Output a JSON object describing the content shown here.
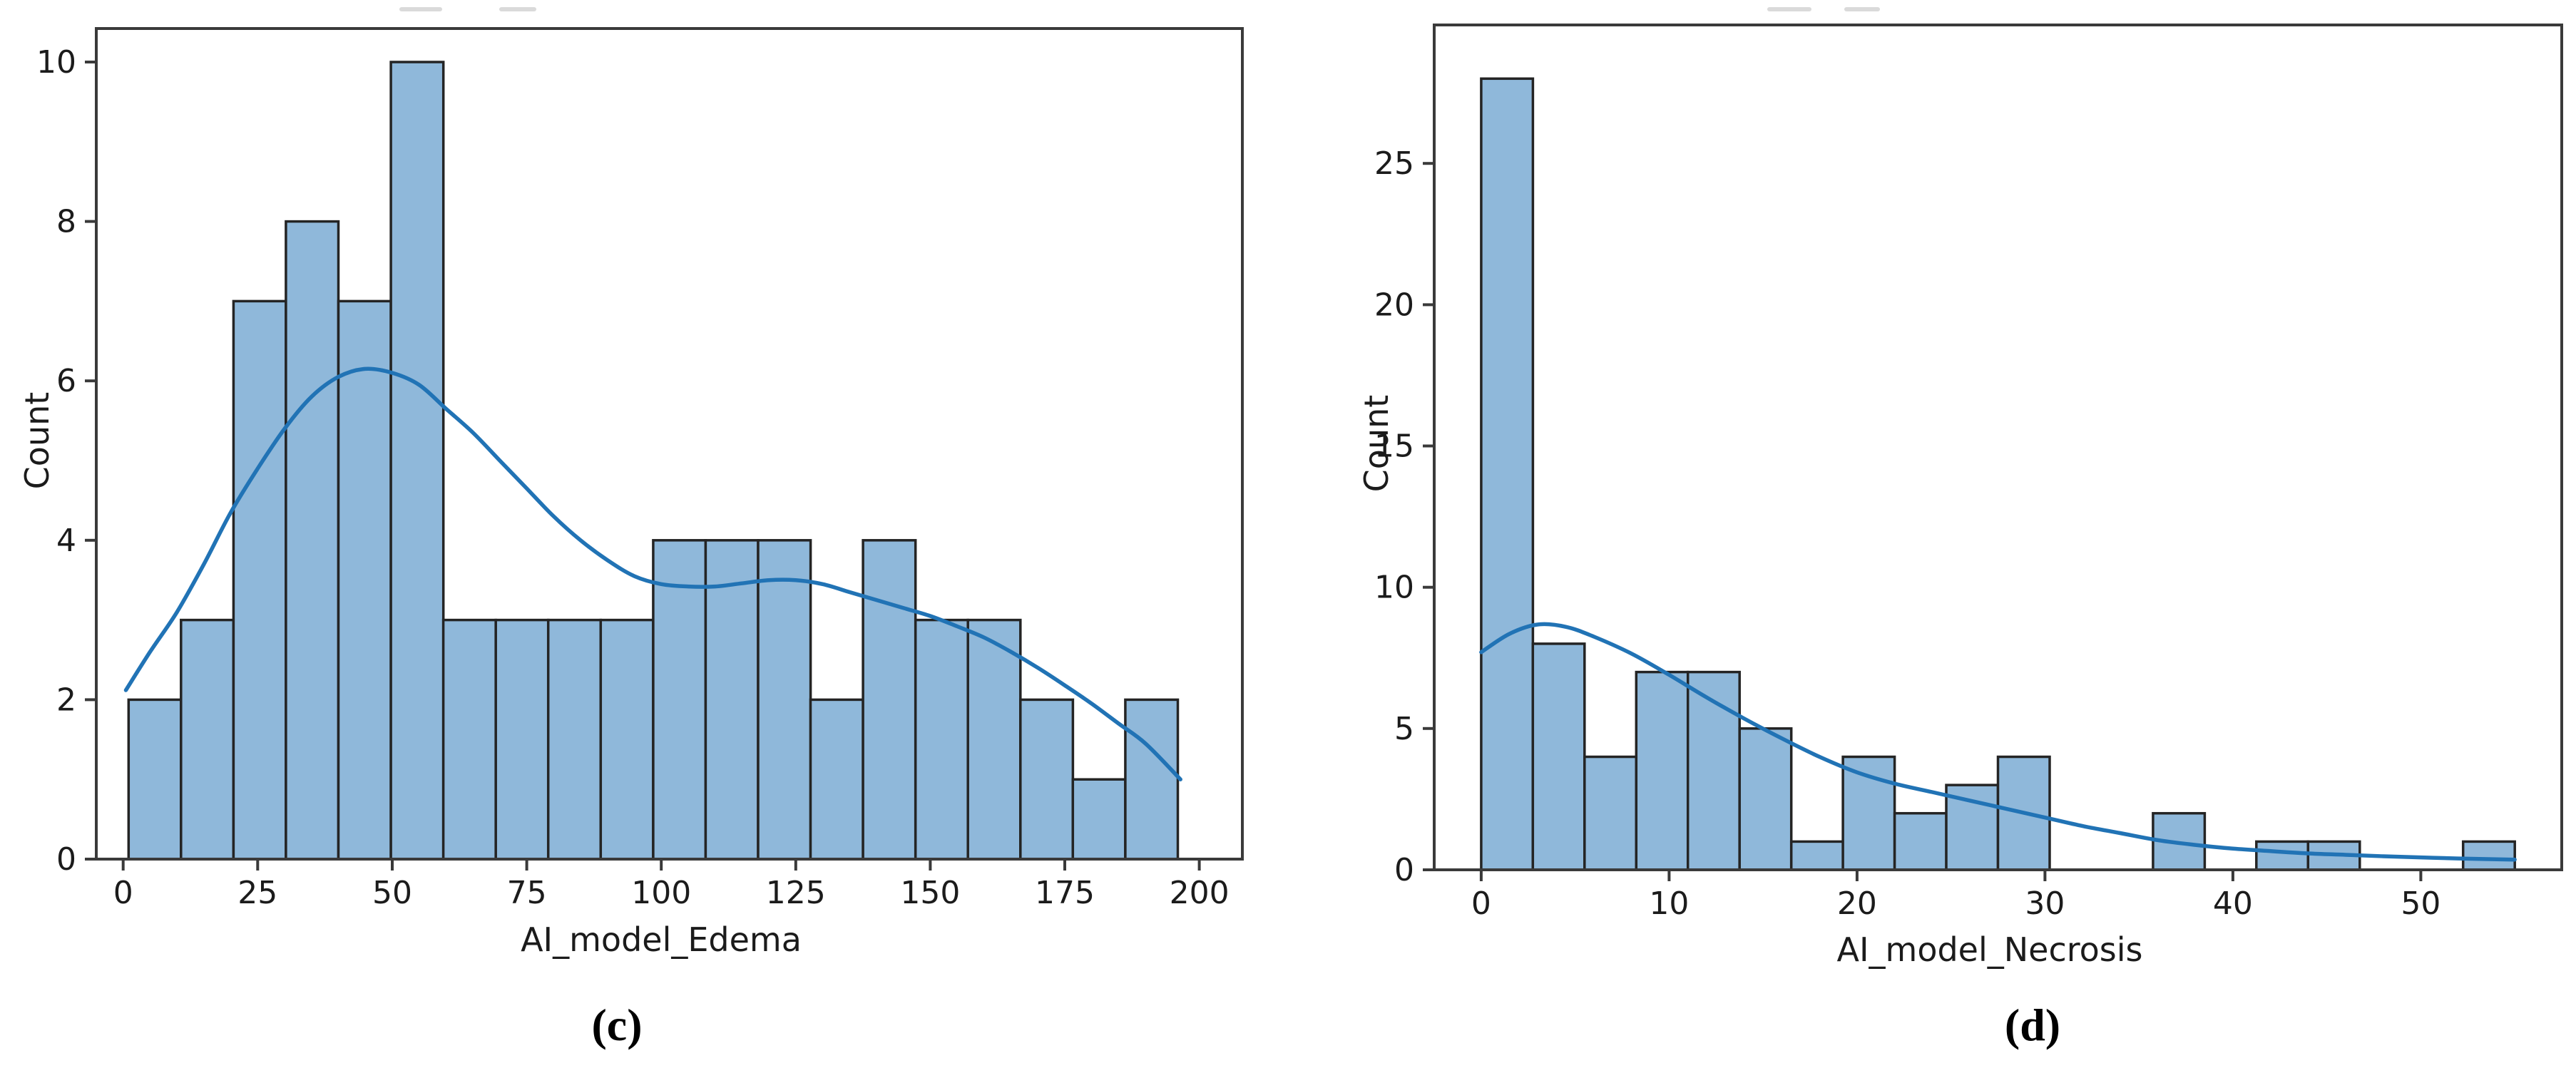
{
  "page": {
    "background": "#ffffff"
  },
  "colors": {
    "bar_fill": "#8fb8da",
    "bar_edge": "#242424",
    "kde_line": "#2173b5",
    "axis": "#3a3a3a",
    "tick_text": "#1b1b1b",
    "artifact": "#dadada"
  },
  "chart_data": [
    {
      "type": "histogram+kde",
      "title": "",
      "xlabel": "AI_model_Edema",
      "ylabel": "Count",
      "caption": "(c)",
      "bins": {
        "start": 1.0,
        "width": 9.75,
        "counts": [
          2,
          3,
          7,
          8,
          7,
          10,
          3,
          3,
          3,
          3,
          4,
          4,
          4,
          2,
          4,
          3,
          3,
          2,
          1,
          2
        ]
      },
      "kde_points": [
        [
          0.5,
          2.12
        ],
        [
          5,
          2.6
        ],
        [
          10,
          3.1
        ],
        [
          15,
          3.7
        ],
        [
          20,
          4.35
        ],
        [
          25,
          4.9
        ],
        [
          30,
          5.4
        ],
        [
          35,
          5.8
        ],
        [
          40,
          6.05
        ],
        [
          45,
          6.15
        ],
        [
          50,
          6.1
        ],
        [
          55,
          5.95
        ],
        [
          60,
          5.65
        ],
        [
          65,
          5.35
        ],
        [
          70,
          5.0
        ],
        [
          75,
          4.65
        ],
        [
          80,
          4.3
        ],
        [
          85,
          4.0
        ],
        [
          90,
          3.75
        ],
        [
          95,
          3.55
        ],
        [
          100,
          3.45
        ],
        [
          105,
          3.42
        ],
        [
          110,
          3.42
        ],
        [
          115,
          3.46
        ],
        [
          120,
          3.5
        ],
        [
          125,
          3.5
        ],
        [
          130,
          3.45
        ],
        [
          135,
          3.35
        ],
        [
          140,
          3.25
        ],
        [
          145,
          3.15
        ],
        [
          150,
          3.05
        ],
        [
          155,
          2.92
        ],
        [
          160,
          2.78
        ],
        [
          165,
          2.6
        ],
        [
          170,
          2.4
        ],
        [
          175,
          2.18
        ],
        [
          180,
          1.95
        ],
        [
          185,
          1.7
        ],
        [
          190,
          1.45
        ],
        [
          196.5,
          1.0
        ]
      ],
      "xticks": [
        0,
        25,
        50,
        75,
        100,
        125,
        150,
        175,
        200
      ],
      "yticks": [
        0,
        2,
        4,
        6,
        8,
        10
      ],
      "xlim": [
        -5,
        208
      ],
      "ylim": [
        0,
        10.42
      ],
      "grid": false,
      "legend": null
    },
    {
      "type": "histogram+kde",
      "title": "",
      "xlabel": "AI_model_Necrosis",
      "ylabel": "Count",
      "caption": "(d)",
      "bins": {
        "start": 0.0,
        "width": 2.75,
        "counts": [
          28,
          8,
          4,
          7,
          7,
          5,
          1,
          4,
          2,
          3,
          4,
          0,
          0,
          2,
          0,
          1,
          1,
          0,
          0,
          1
        ]
      },
      "kde_points": [
        [
          0,
          7.7
        ],
        [
          1.5,
          8.35
        ],
        [
          3,
          8.68
        ],
        [
          4.5,
          8.6
        ],
        [
          6,
          8.25
        ],
        [
          8,
          7.65
        ],
        [
          10,
          6.9
        ],
        [
          12,
          6.1
        ],
        [
          14,
          5.35
        ],
        [
          16,
          4.65
        ],
        [
          18,
          4.0
        ],
        [
          20,
          3.45
        ],
        [
          22,
          3.05
        ],
        [
          24,
          2.75
        ],
        [
          26,
          2.45
        ],
        [
          28,
          2.15
        ],
        [
          30,
          1.85
        ],
        [
          32,
          1.55
        ],
        [
          34,
          1.3
        ],
        [
          36,
          1.05
        ],
        [
          38,
          0.88
        ],
        [
          40,
          0.75
        ],
        [
          42,
          0.66
        ],
        [
          44,
          0.58
        ],
        [
          46,
          0.53
        ],
        [
          48,
          0.48
        ],
        [
          50,
          0.44
        ],
        [
          52,
          0.4
        ],
        [
          55,
          0.36
        ]
      ],
      "xticks": [
        0,
        10,
        20,
        30,
        40,
        50
      ],
      "yticks": [
        0,
        5,
        10,
        15,
        20,
        25
      ],
      "xlim": [
        -2.5,
        57.5
      ],
      "ylim": [
        0,
        29.9
      ],
      "grid": false,
      "legend": null
    }
  ]
}
